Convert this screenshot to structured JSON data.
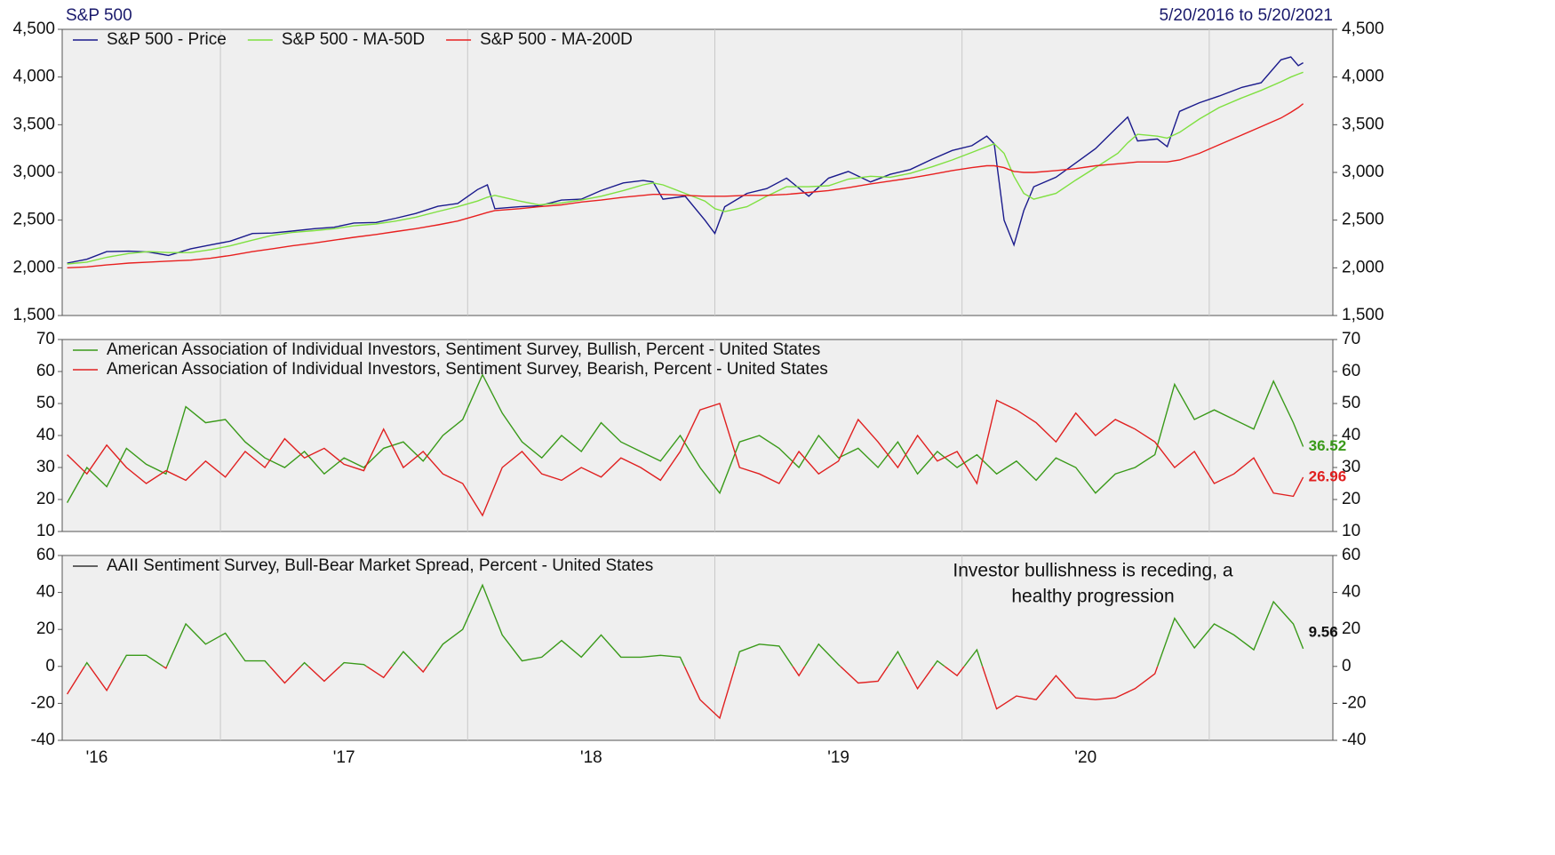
{
  "chart_data": [
    {
      "type": "line",
      "title": "S&P 500",
      "subtitle": "5/20/2016 to 5/20/2021",
      "legend_direction": "horizontal",
      "xlim": [
        2016.36,
        2021.5
      ],
      "ylim": [
        1500,
        4500
      ],
      "yticks": [
        {
          "value": 1500,
          "label": "1,500"
        },
        {
          "value": 2000,
          "label": "2,000"
        },
        {
          "value": 2500,
          "label": "2,500"
        },
        {
          "value": 3000,
          "label": "3,000"
        },
        {
          "value": 3500,
          "label": "3,500"
        },
        {
          "value": 4000,
          "label": "4,000"
        },
        {
          "value": 4500,
          "label": "4,500"
        }
      ],
      "x": [
        2016.38,
        2016.46,
        2016.54,
        2016.63,
        2016.71,
        2016.79,
        2016.88,
        2016.96,
        2017.04,
        2017.13,
        2017.21,
        2017.29,
        2017.38,
        2017.46,
        2017.54,
        2017.63,
        2017.71,
        2017.79,
        2017.88,
        2017.96,
        2018.04,
        2018.08,
        2018.11,
        2018.21,
        2018.29,
        2018.38,
        2018.46,
        2018.54,
        2018.63,
        2018.71,
        2018.75,
        2018.79,
        2018.88,
        2018.96,
        2019.0,
        2019.04,
        2019.13,
        2019.21,
        2019.29,
        2019.38,
        2019.46,
        2019.54,
        2019.63,
        2019.71,
        2019.79,
        2019.88,
        2019.96,
        2020.04,
        2020.1,
        2020.13,
        2020.17,
        2020.21,
        2020.25,
        2020.29,
        2020.38,
        2020.46,
        2020.54,
        2020.63,
        2020.67,
        2020.71,
        2020.79,
        2020.83,
        2020.88,
        2020.96,
        2021.04,
        2021.13,
        2021.21,
        2021.29,
        2021.33,
        2021.36,
        2021.38
      ],
      "series": [
        {
          "name": "S&P 500 - Price",
          "color": "#1a1a8c",
          "values": [
            2050,
            2090,
            2170,
            2175,
            2165,
            2130,
            2200,
            2240,
            2280,
            2360,
            2365,
            2385,
            2410,
            2425,
            2470,
            2475,
            2520,
            2570,
            2645,
            2675,
            2820,
            2870,
            2620,
            2640,
            2650,
            2710,
            2720,
            2810,
            2890,
            2915,
            2900,
            2720,
            2750,
            2500,
            2360,
            2640,
            2780,
            2830,
            2940,
            2750,
            2940,
            3010,
            2900,
            2980,
            3030,
            3140,
            3230,
            3280,
            3380,
            3300,
            2500,
            2240,
            2600,
            2850,
            2950,
            3100,
            3250,
            3480,
            3580,
            3330,
            3350,
            3270,
            3640,
            3730,
            3800,
            3890,
            3940,
            4180,
            4210,
            4120,
            4150
          ]
        },
        {
          "name": "S&P 500 - MA-50D",
          "color": "#7fe040",
          "values": [
            2040,
            2060,
            2110,
            2150,
            2170,
            2160,
            2160,
            2190,
            2230,
            2290,
            2340,
            2370,
            2390,
            2410,
            2440,
            2460,
            2490,
            2530,
            2590,
            2640,
            2700,
            2740,
            2760,
            2700,
            2660,
            2680,
            2710,
            2750,
            2810,
            2870,
            2890,
            2870,
            2780,
            2700,
            2620,
            2590,
            2640,
            2750,
            2850,
            2850,
            2860,
            2930,
            2960,
            2950,
            2990,
            3060,
            3130,
            3210,
            3270,
            3300,
            3200,
            2960,
            2780,
            2720,
            2780,
            2920,
            3050,
            3200,
            3310,
            3400,
            3380,
            3360,
            3420,
            3560,
            3680,
            3780,
            3860,
            3950,
            4000,
            4030,
            4050
          ]
        },
        {
          "name": "S&P 500 - MA-200D",
          "color": "#e82020",
          "values": [
            2000,
            2010,
            2030,
            2050,
            2060,
            2070,
            2080,
            2100,
            2130,
            2170,
            2200,
            2230,
            2260,
            2290,
            2320,
            2350,
            2380,
            2410,
            2450,
            2490,
            2550,
            2580,
            2600,
            2620,
            2640,
            2660,
            2690,
            2710,
            2740,
            2760,
            2770,
            2770,
            2760,
            2750,
            2750,
            2750,
            2760,
            2760,
            2770,
            2790,
            2810,
            2840,
            2880,
            2910,
            2940,
            2980,
            3020,
            3050,
            3070,
            3070,
            3050,
            3010,
            3000,
            3000,
            3020,
            3040,
            3070,
            3090,
            3100,
            3110,
            3110,
            3110,
            3130,
            3200,
            3290,
            3390,
            3480,
            3570,
            3630,
            3680,
            3720
          ]
        }
      ]
    },
    {
      "type": "line",
      "legend_direction": "vertical",
      "end_labels": true,
      "xlim": [
        2016.36,
        2021.5
      ],
      "ylim": [
        10,
        70
      ],
      "yticks": [
        10,
        20,
        30,
        40,
        50,
        60,
        70
      ],
      "x": [
        2016.38,
        2016.46,
        2016.54,
        2016.62,
        2016.7,
        2016.78,
        2016.86,
        2016.94,
        2017.02,
        2017.1,
        2017.18,
        2017.26,
        2017.34,
        2017.42,
        2017.5,
        2017.58,
        2017.66,
        2017.74,
        2017.82,
        2017.9,
        2017.98,
        2018.06,
        2018.14,
        2018.22,
        2018.3,
        2018.38,
        2018.46,
        2018.54,
        2018.62,
        2018.7,
        2018.78,
        2018.86,
        2018.94,
        2019.02,
        2019.1,
        2019.18,
        2019.26,
        2019.34,
        2019.42,
        2019.5,
        2019.58,
        2019.66,
        2019.74,
        2019.82,
        2019.9,
        2019.98,
        2020.06,
        2020.14,
        2020.22,
        2020.3,
        2020.38,
        2020.46,
        2020.54,
        2020.62,
        2020.7,
        2020.78,
        2020.86,
        2020.94,
        2021.02,
        2021.1,
        2021.18,
        2021.26,
        2021.34,
        2021.38
      ],
      "series": [
        {
          "name": "American Association of Individual Investors, Sentiment Survey, Bullish, Percent - United States",
          "color": "#3a9a1a",
          "values": [
            19,
            30,
            24,
            36,
            31,
            28,
            49,
            44,
            45,
            38,
            33,
            30,
            35,
            28,
            33,
            30,
            36,
            38,
            32,
            40,
            45,
            59,
            47,
            38,
            33,
            40,
            35,
            44,
            38,
            35,
            32,
            40,
            30,
            22,
            38,
            40,
            36,
            30,
            40,
            33,
            36,
            30,
            38,
            28,
            35,
            30,
            34,
            28,
            32,
            26,
            33,
            30,
            22,
            28,
            30,
            34,
            56,
            45,
            48,
            45,
            42,
            57,
            44,
            36.52
          ]
        },
        {
          "name": "American Association of Individual Investors, Sentiment Survey, Bearish, Percent - United States",
          "color": "#e02020",
          "values": [
            34,
            28,
            37,
            30,
            25,
            29,
            26,
            32,
            27,
            35,
            30,
            39,
            33,
            36,
            31,
            29,
            42,
            30,
            35,
            28,
            25,
            15,
            30,
            35,
            28,
            26,
            30,
            27,
            33,
            30,
            26,
            35,
            48,
            50,
            30,
            28,
            25,
            35,
            28,
            32,
            45,
            38,
            30,
            40,
            32,
            35,
            25,
            51,
            48,
            44,
            38,
            47,
            40,
            45,
            42,
            38,
            30,
            35,
            25,
            28,
            33,
            22,
            21,
            26.96
          ]
        }
      ]
    },
    {
      "type": "signed_line",
      "legend_direction": "vertical",
      "end_labels": true,
      "color_positive": "#3a9a1a",
      "color_negative": "#e02020",
      "annotation": [
        "Investor bullishness is receding, a",
        "healthy progression"
      ],
      "xlim": [
        2016.36,
        2021.5
      ],
      "xticks": [
        {
          "value": 2016.5,
          "label": "'16"
        },
        {
          "value": 2017.5,
          "label": "'17"
        },
        {
          "value": 2018.5,
          "label": "'18"
        },
        {
          "value": 2019.5,
          "label": "'19"
        },
        {
          "value": 2020.5,
          "label": "'20"
        }
      ],
      "xgrid": [
        2017,
        2018,
        2019,
        2020,
        2021
      ],
      "ylim": [
        -40,
        60
      ],
      "yticks": [
        -40,
        -20,
        0,
        20,
        40,
        60
      ],
      "x": [
        2016.38,
        2016.46,
        2016.54,
        2016.62,
        2016.7,
        2016.78,
        2016.86,
        2016.94,
        2017.02,
        2017.1,
        2017.18,
        2017.26,
        2017.34,
        2017.42,
        2017.5,
        2017.58,
        2017.66,
        2017.74,
        2017.82,
        2017.9,
        2017.98,
        2018.06,
        2018.14,
        2018.22,
        2018.3,
        2018.38,
        2018.46,
        2018.54,
        2018.62,
        2018.7,
        2018.78,
        2018.86,
        2018.94,
        2019.02,
        2019.1,
        2019.18,
        2019.26,
        2019.34,
        2019.42,
        2019.5,
        2019.58,
        2019.66,
        2019.74,
        2019.82,
        2019.9,
        2019.98,
        2020.06,
        2020.14,
        2020.22,
        2020.3,
        2020.38,
        2020.46,
        2020.54,
        2020.62,
        2020.7,
        2020.78,
        2020.86,
        2020.94,
        2021.02,
        2021.1,
        2021.18,
        2021.26,
        2021.34,
        2021.38
      ],
      "series": [
        {
          "name": "AAII Sentiment Survey, Bull-Bear Market Spread, Percent - United States",
          "color": "#333333",
          "values": [
            -15,
            2,
            -13,
            6,
            6,
            -1,
            23,
            12,
            18,
            3,
            3,
            -9,
            2,
            -8,
            2,
            1,
            -6,
            8,
            -3,
            12,
            20,
            44,
            17,
            3,
            5,
            14,
            5,
            17,
            5,
            5,
            6,
            5,
            -18,
            -28,
            8,
            12,
            11,
            -5,
            12,
            1,
            -9,
            -8,
            8,
            -12,
            3,
            -5,
            9,
            -23,
            -16,
            -18,
            -5,
            -17,
            -18,
            -17,
            -12,
            -4,
            26,
            10,
            23,
            17,
            9,
            35,
            23,
            9.56
          ]
        }
      ]
    }
  ]
}
